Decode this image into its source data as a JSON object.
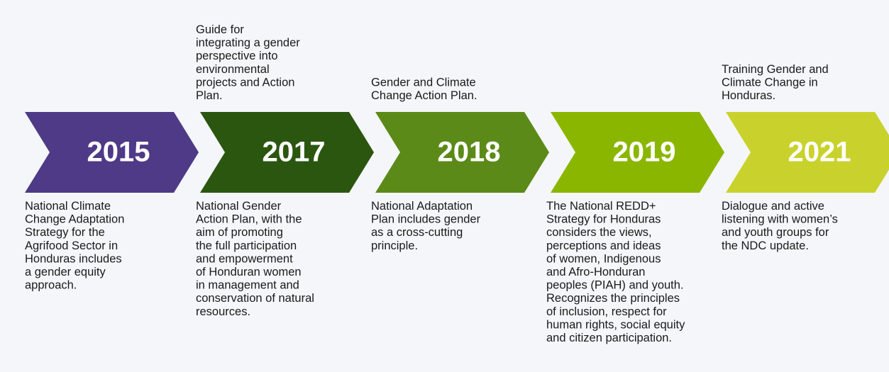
{
  "timeline": [
    {
      "year": "2015",
      "color": "#4e3a86",
      "below": [
        "National Climate",
        "Change Adaptation",
        "Strategy for the",
        "Agrifood Sector in",
        "Honduras includes",
        "a gender equity",
        "approach."
      ]
    },
    {
      "year": "2017",
      "color": "#2b5610",
      "above": [
        "Guide for",
        "integrating a gender",
        "perspective into",
        "environmental",
        "projects and Action",
        "Plan."
      ],
      "below": [
        "National Gender",
        "Action Plan, with the",
        "aim of promoting",
        "the full participation",
        "and empowerment",
        "of Honduran women",
        "in management and",
        "conservation of natural",
        "resources."
      ]
    },
    {
      "year": "2018",
      "color": "#5b8a18",
      "above": [
        "Gender and Climate",
        "Change Action Plan."
      ],
      "below": [
        "National Adaptation",
        "Plan includes gender",
        "as a cross-cutting",
        "principle."
      ]
    },
    {
      "year": "2019",
      "color": "#8bb600",
      "below": [
        "The National REDD+",
        "Strategy for Honduras",
        "considers the views,",
        "perceptions and ideas",
        "of women, Indigenous",
        "and Afro-Honduran",
        "peoples (PIAH) and youth.",
        "Recognizes the principles",
        "of inclusion, respect for",
        "human rights, social equity",
        "and citizen participation."
      ]
    },
    {
      "year": "2021",
      "color": "#c9d22c",
      "above": [
        "Training Gender and",
        "Climate Change in",
        "Honduras."
      ],
      "below": [
        "Dialogue and active",
        "listening with women’s",
        "and youth groups for",
        "the NDC update."
      ]
    }
  ]
}
